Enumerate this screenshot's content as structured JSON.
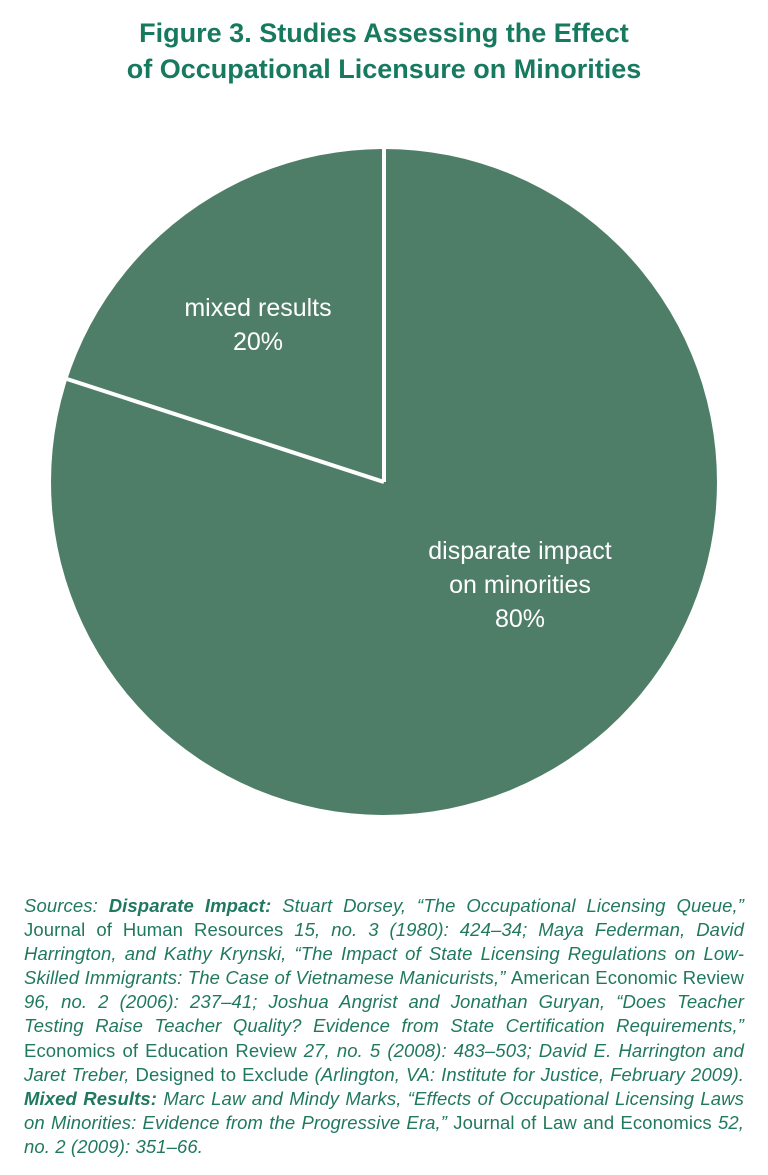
{
  "title": {
    "line1": "Figure 3. Studies Assessing the Effect",
    "line2": "of Occupational Licensure on Minorities"
  },
  "chart_data": {
    "type": "pie",
    "title": "Figure 3. Studies Assessing the Effect of Occupational Licensure on Minorities",
    "slices": [
      {
        "label": "disparate impact on minorities",
        "value": 80,
        "percent_label": "80%",
        "label_lines": [
          "disparate impact",
          "on minorities",
          "80%"
        ]
      },
      {
        "label": "mixed results",
        "value": 20,
        "percent_label": "20%",
        "label_lines": [
          "mixed results",
          "20%"
        ]
      }
    ],
    "colors": {
      "pie_fill": "#4f7e68",
      "divider": "#ffffff",
      "label_text": "#ffffff",
      "title_text": "#177a5e"
    },
    "start_angle_deg": -90,
    "mixed_slice_direction": "counterclockwise",
    "legend": "none"
  },
  "sources": {
    "segments": [
      {
        "text": "Sources: ",
        "italic": true
      },
      {
        "text": "Disparate Impact: ",
        "bold": true,
        "italic": true
      },
      {
        "text": "Stuart Dorsey, “The Occupational Licensing Queue,” ",
        "italic": true
      },
      {
        "text": "Journal of Human Resources ",
        "roman": true
      },
      {
        "text": "15, no. 3 (1980): 424–34; Maya Federman, David Harrington, and Kathy Krynski, “The Impact of State Licensing Regulations on Low-Skilled Immigrants: The Case of Vietnamese Manicurists,” ",
        "italic": true
      },
      {
        "text": "American Economic Review ",
        "roman": true
      },
      {
        "text": "96, no. 2 (2006): 237–41; Joshua Angrist and Jonathan Guryan, “Does Teacher Testing Raise Teacher Quality? Evidence from State Certification Requirements,” ",
        "italic": true
      },
      {
        "text": "Economics of Education Review ",
        "roman": true
      },
      {
        "text": "27, no. 5 (2008): 483–503; David E. Harrington and Jaret Treber, ",
        "italic": true
      },
      {
        "text": "Designed to Exclude ",
        "roman": true
      },
      {
        "text": "(Arlington, VA: Institute for Justice, February 2009). ",
        "italic": true
      },
      {
        "text": "Mixed Results: ",
        "bold": true,
        "italic": true
      },
      {
        "text": "Marc Law and Mindy Marks, “Effects of Occupational Licensing Laws on Minorities: Evidence from the Progressive Era,” ",
        "italic": true
      },
      {
        "text": "Journal of Law and Economics ",
        "roman": true
      },
      {
        "text": "52, no. 2 (2009): 351–66.",
        "italic": true
      }
    ]
  }
}
